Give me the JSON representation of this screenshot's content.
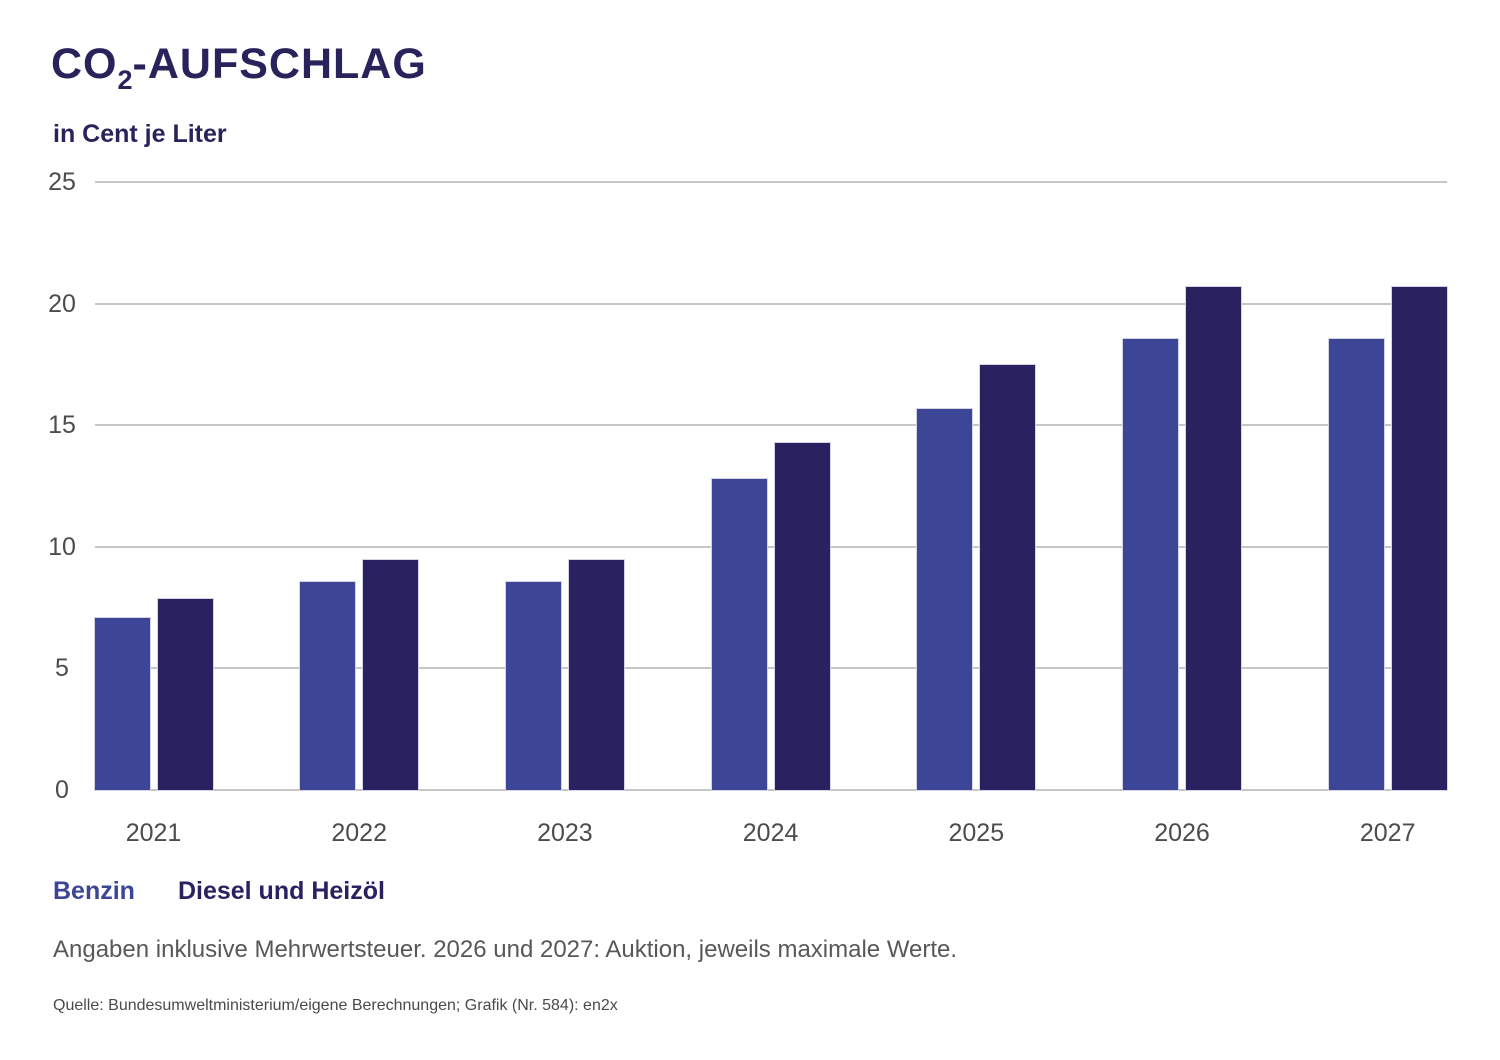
{
  "header": {
    "title_prefix": "CO",
    "title_sub": "2",
    "title_suffix": "-AUFSCHLAG",
    "subtitle": "in Cent je Liter"
  },
  "chart_data": {
    "type": "bar",
    "title": "CO2-AUFSCHLAG",
    "subtitle": "in Cent je Liter",
    "xlabel": "",
    "ylabel": "Cent je Liter",
    "categories": [
      "2021",
      "2022",
      "2023",
      "2024",
      "2025",
      "2026",
      "2027"
    ],
    "series": [
      {
        "name": "Benzin",
        "color": "#3c4596",
        "values": [
          7.1,
          8.6,
          8.6,
          12.8,
          15.7,
          18.6,
          18.6
        ]
      },
      {
        "name": "Diesel und Heizöl",
        "color": "#2a2161",
        "values": [
          7.9,
          9.5,
          9.5,
          14.3,
          17.5,
          20.7,
          20.7
        ]
      }
    ],
    "yticks": [
      0,
      5,
      10,
      15,
      20,
      25
    ],
    "ylim": [
      0,
      25
    ],
    "grid": "horizontal",
    "gridline_color": "#c6c6c6",
    "axis_text_color": "#4c4c4e",
    "legend_position": "bottom-left"
  },
  "notes": {
    "footnote": "Angaben inklusive Mehrwertsteuer. 2026 und 2027: Auktion, jeweils maximale Werte.",
    "source": "Quelle: Bundesumweltministerium/eigene Berechnungen; Grafik (Nr. 584): en2x"
  }
}
